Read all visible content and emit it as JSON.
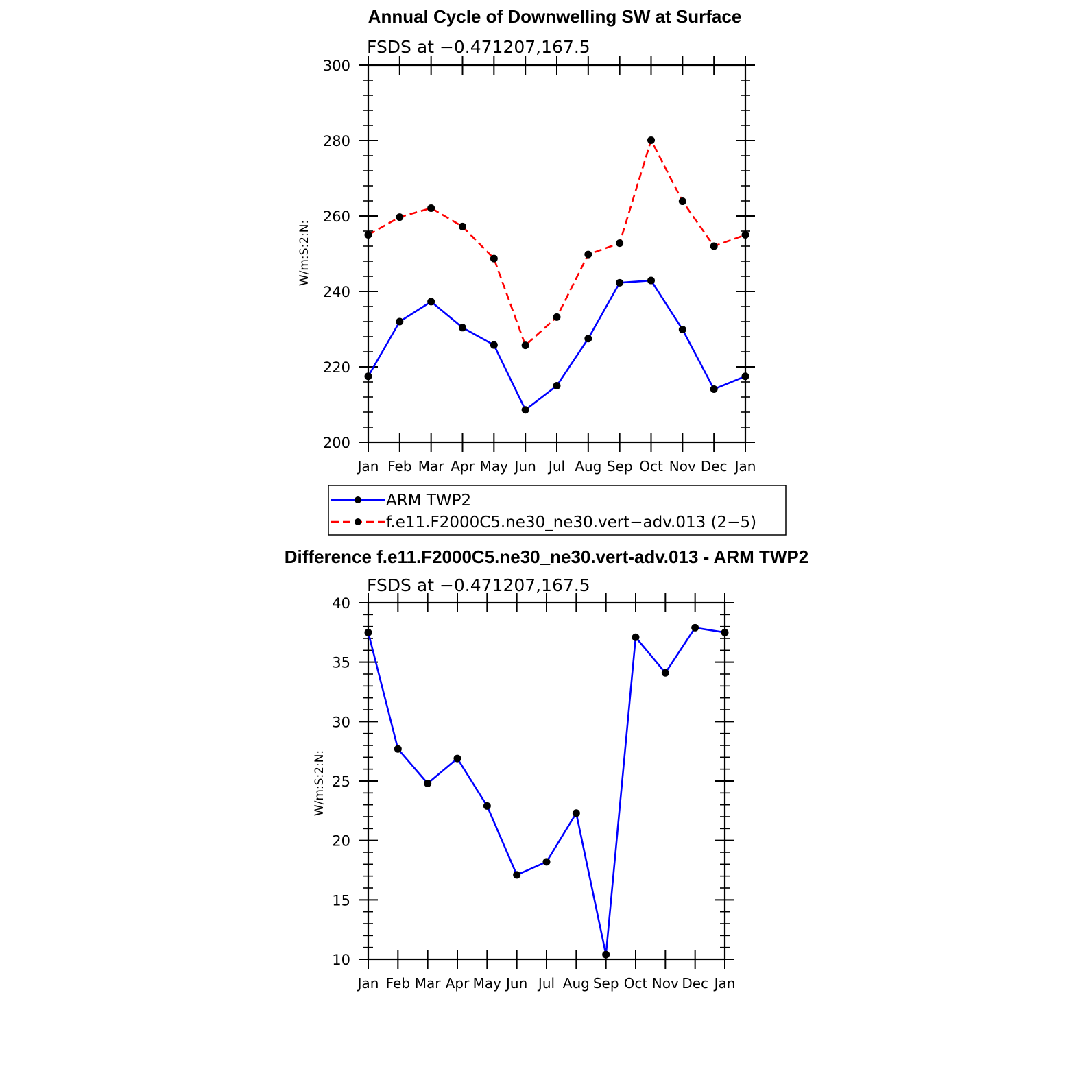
{
  "chart_data": [
    {
      "type": "line",
      "title": "Annual Cycle of Downwelling SW at Surface",
      "subtitle": "FSDS at −0.471207,167.5",
      "ylabel": "W/m:S:2:N:",
      "xlabel": "",
      "ylim": [
        200,
        300
      ],
      "yticks": [
        "200",
        "220",
        "240",
        "260",
        "280",
        "300"
      ],
      "categories": [
        "Jan",
        "Feb",
        "Mar",
        "Apr",
        "May",
        "Jun",
        "Jul",
        "Aug",
        "Sep",
        "Oct",
        "Nov",
        "Dec",
        "Jan"
      ],
      "series": [
        {
          "name": "ARM TWP2",
          "color": "#0000ff",
          "dash": "solid",
          "values": [
            217.5,
            232.0,
            237.3,
            230.4,
            225.8,
            208.6,
            215.0,
            227.5,
            242.3,
            242.9,
            229.9,
            214.1,
            217.5
          ]
        },
        {
          "name": "f.e11.F2000C5.ne30_ne30.vert−adv.013 (2−5)",
          "color": "#ff0000",
          "dash": "dashed",
          "values": [
            255.0,
            259.7,
            262.1,
            257.2,
            248.7,
            225.7,
            233.2,
            249.8,
            252.8,
            280.1,
            263.9,
            252.0,
            255.0
          ]
        }
      ],
      "legend": "bottom"
    },
    {
      "type": "line",
      "title": "Difference f.e11.F2000C5.ne30_ne30.vert-adv.013 - ARM TWP2",
      "subtitle": "FSDS at −0.471207,167.5",
      "ylabel": "W/m:S:2:N:",
      "xlabel": "",
      "ylim": [
        10,
        40
      ],
      "yticks": [
        "10",
        "15",
        "20",
        "25",
        "30",
        "35",
        "40"
      ],
      "categories": [
        "Jan",
        "Feb",
        "Mar",
        "Apr",
        "May",
        "Jun",
        "Jul",
        "Aug",
        "Sep",
        "Oct",
        "Nov",
        "Dec",
        "Jan"
      ],
      "series": [
        {
          "color": "#0000ff",
          "dash": "solid",
          "values": [
            37.5,
            27.7,
            24.8,
            26.9,
            22.9,
            17.1,
            18.2,
            22.3,
            10.4,
            37.1,
            34.1,
            37.9,
            37.5
          ]
        }
      ]
    }
  ]
}
